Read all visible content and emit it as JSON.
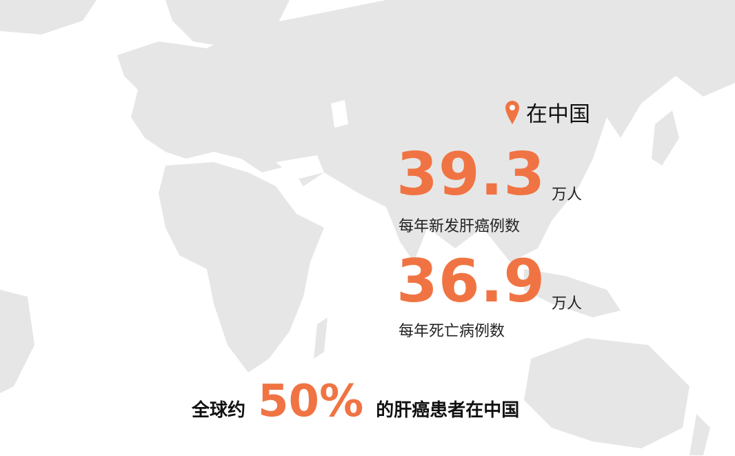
{
  "colors": {
    "accent": "#f07443",
    "map": "#e6e6e6",
    "text": "#111111"
  },
  "location": {
    "icon": "map-pin-icon",
    "label": "在中国"
  },
  "stats": [
    {
      "value": "39.3",
      "unit": "万人",
      "label": "每年新发肝癌例数"
    },
    {
      "value": "36.9",
      "unit": "万人",
      "label": "每年死亡病例数"
    }
  ],
  "summary": {
    "prefix": "全球约",
    "percent": "50%",
    "suffix": "的肝癌患者在中国"
  }
}
